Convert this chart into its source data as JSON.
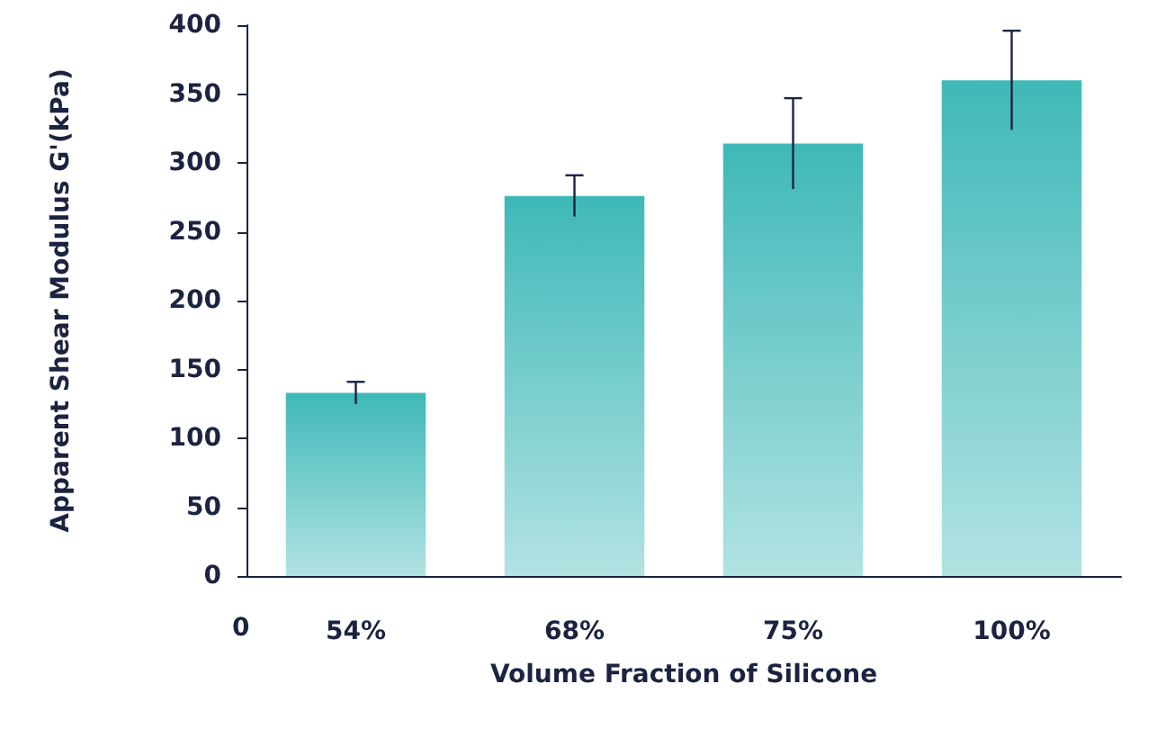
{
  "chart_data": {
    "type": "bar",
    "xlabel": "Volume Fraction of Silicone",
    "ylabel": "Apparent Shear Modulus G'(kPa)",
    "categories": [
      "54%",
      "68%",
      "75%",
      "100%"
    ],
    "values": [
      133,
      276,
      314,
      360
    ],
    "errors": [
      8,
      15,
      33,
      36
    ],
    "color": "#3fb8b8",
    "ylim": [
      0,
      400
    ],
    "yticks": [
      0,
      50,
      100,
      150,
      200,
      250,
      300,
      350,
      400
    ],
    "grid": false,
    "annotations": [
      "0"
    ]
  }
}
